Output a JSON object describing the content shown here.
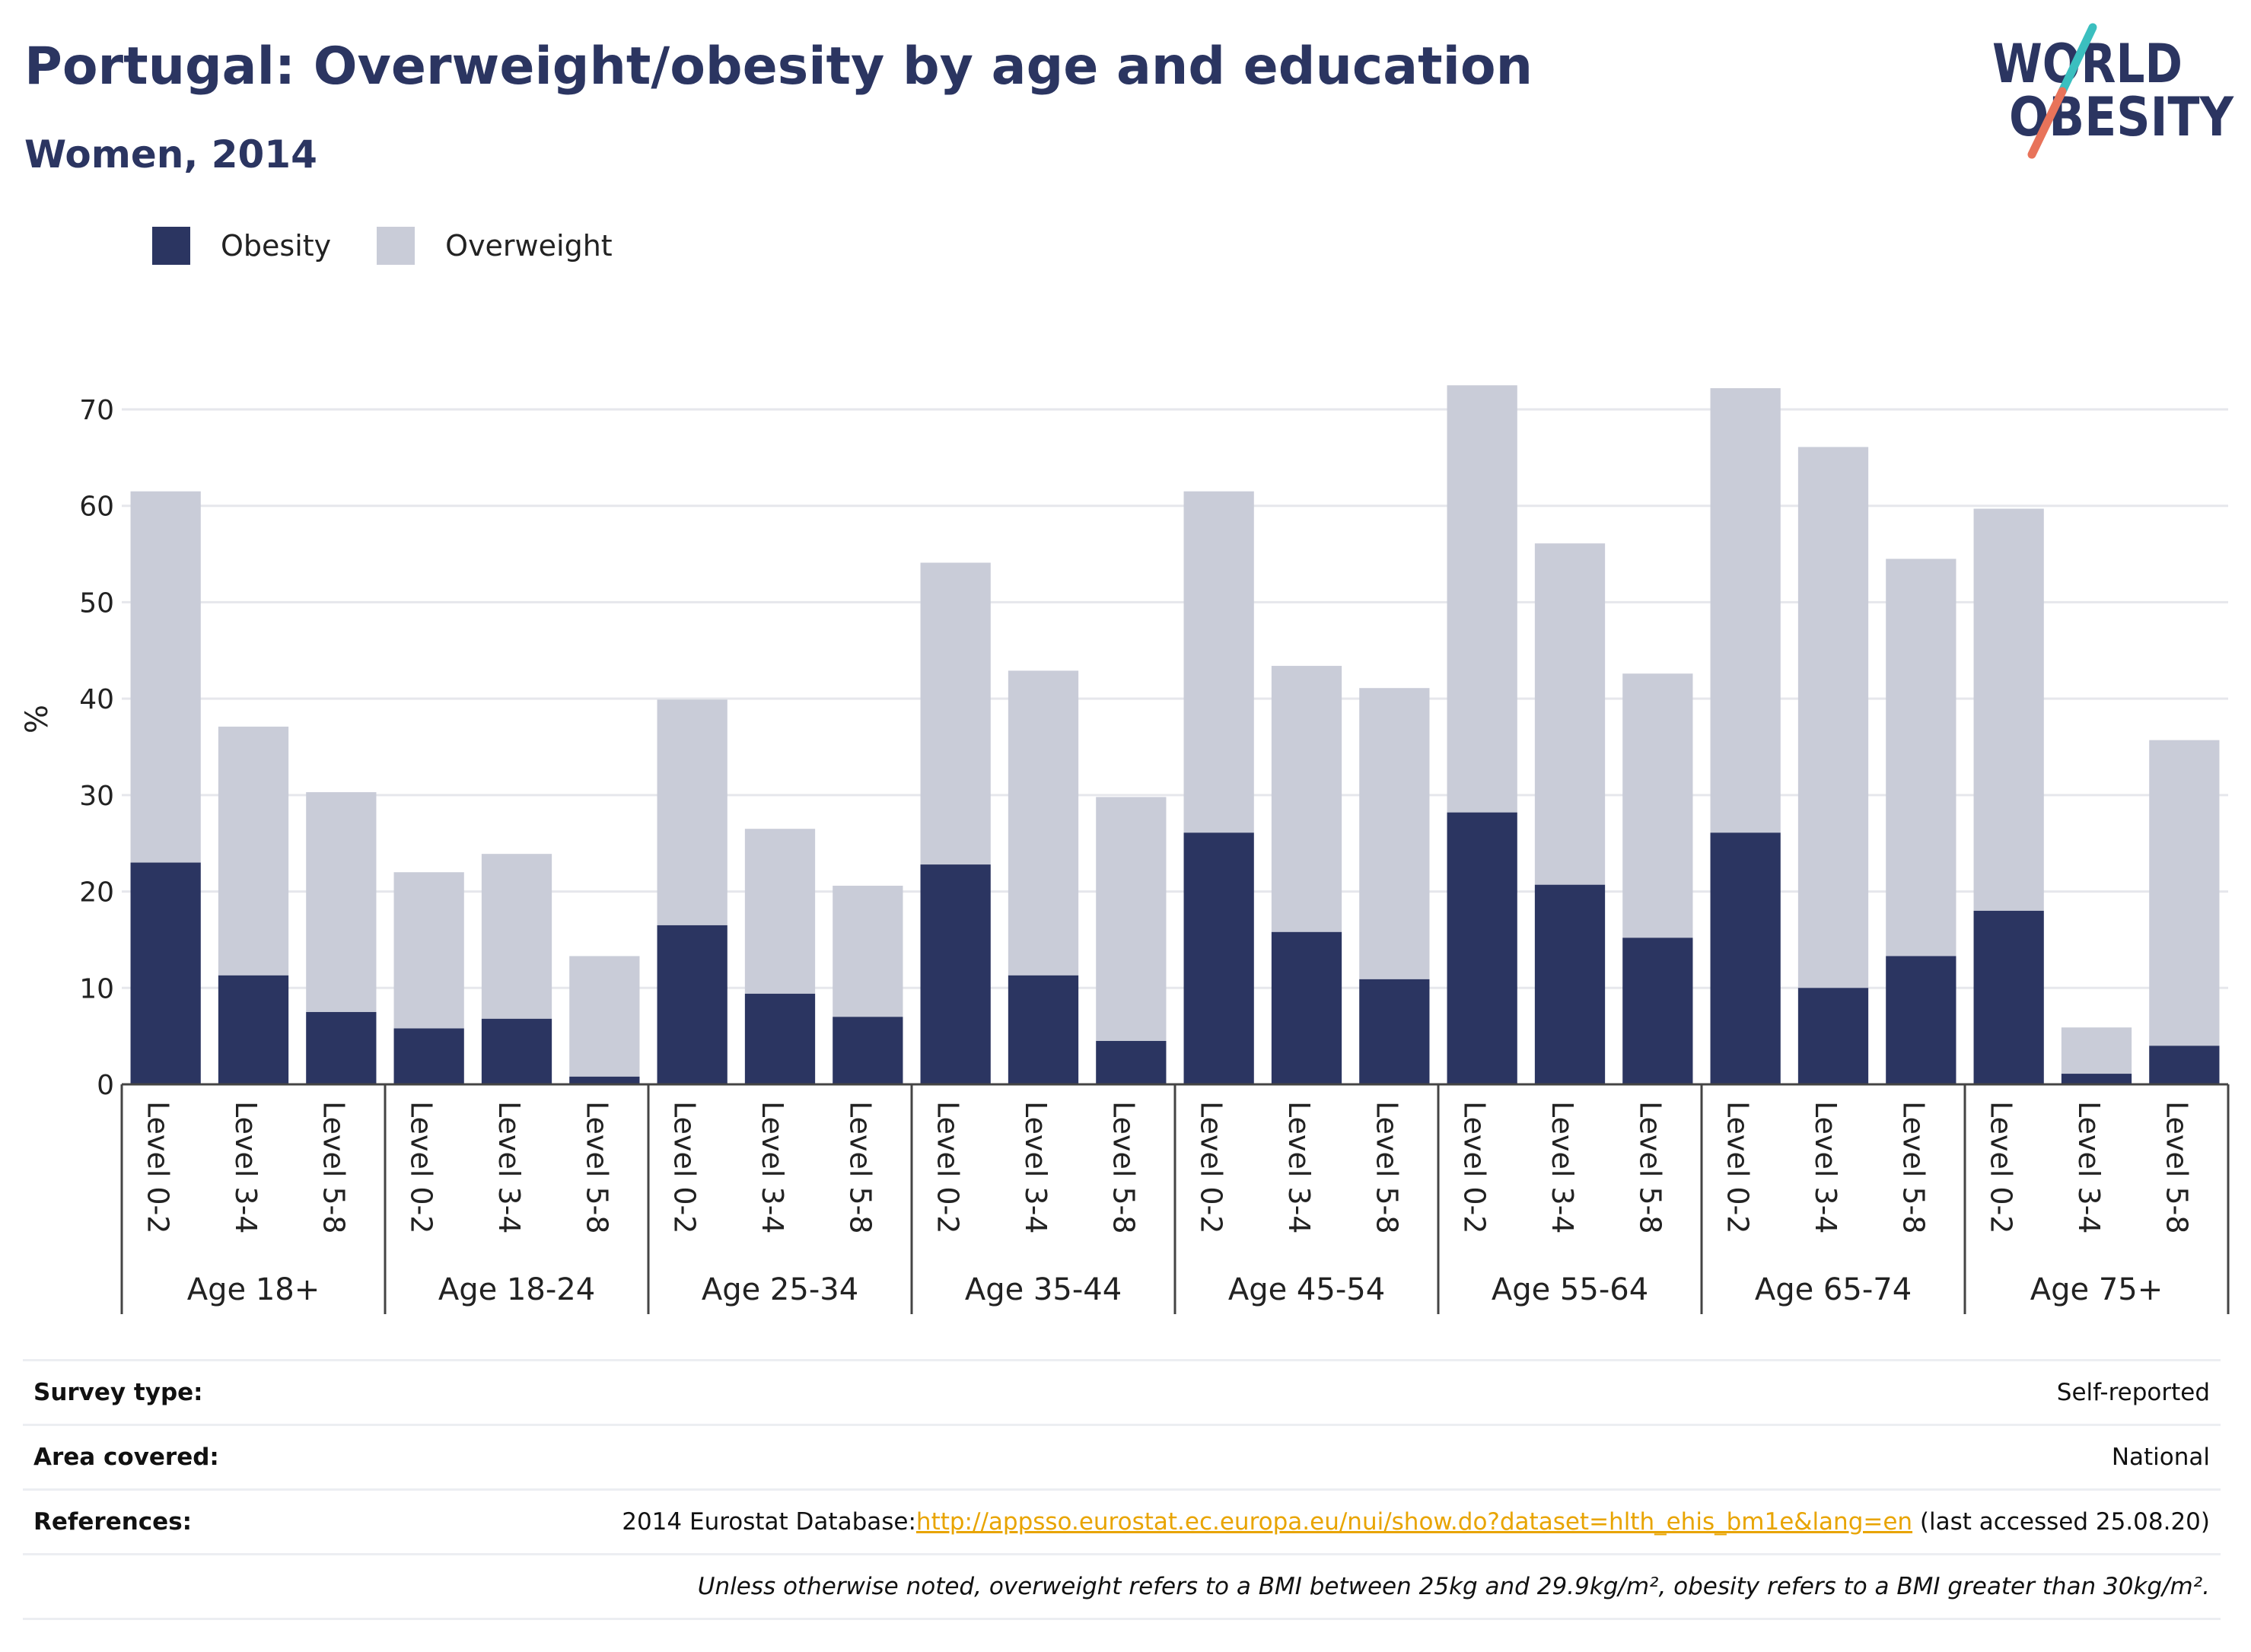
{
  "header": {
    "title": "Portugal: Overweight/obesity by age and education",
    "subtitle": "Women, 2014"
  },
  "logo": {
    "line1": "WORLD",
    "line2": "OBESITY",
    "icon": "world-obesity-logo"
  },
  "colors": {
    "obesity": "#2b3561",
    "overweight": "#c9ccd8",
    "accent_teal": "#3bbfbf",
    "accent_coral": "#e8735a",
    "link": "#e8a400"
  },
  "info": {
    "survey_label": "Survey type:",
    "survey_value": "Self-reported",
    "area_label": "Area covered:",
    "area_value": "National",
    "references_label": "References:",
    "references_prefix": "2014 Eurostat Database:",
    "references_link": "http://appsso.eurostat.ec.europa.eu/nui/show.do?dataset=hlth_ehis_bm1e&lang=en",
    "references_suffix": " (last accessed 25.08.20)",
    "note": "Unless otherwise noted, overweight refers to a BMI between 25kg and 29.9kg/m², obesity refers to a BMI greater than 30kg/m²."
  },
  "chart_data": {
    "type": "bar",
    "stacked": true,
    "ylabel": "%",
    "ylim": [
      0,
      75
    ],
    "yticks": [
      0,
      10,
      20,
      30,
      40,
      50,
      60,
      70
    ],
    "grid": true,
    "legend_position": "top-left",
    "groups": [
      {
        "label": "Age 18+",
        "bars": [
          {
            "category": "Level 0-2",
            "obesity": 23.0,
            "overweight": 38.5
          },
          {
            "category": "Level 3-4",
            "obesity": 11.3,
            "overweight": 25.8
          },
          {
            "category": "Level 5-8",
            "obesity": 7.5,
            "overweight": 22.8
          }
        ]
      },
      {
        "label": "Age 18-24",
        "bars": [
          {
            "category": "Level 0-2",
            "obesity": 5.8,
            "overweight": 16.2
          },
          {
            "category": "Level 3-4",
            "obesity": 6.8,
            "overweight": 17.1
          },
          {
            "category": "Level 5-8",
            "obesity": 0.8,
            "overweight": 12.5
          }
        ]
      },
      {
        "label": "Age 25-34",
        "bars": [
          {
            "category": "Level 0-2",
            "obesity": 16.5,
            "overweight": 23.4
          },
          {
            "category": "Level 3-4",
            "obesity": 9.4,
            "overweight": 17.1
          },
          {
            "category": "Level 5-8",
            "obesity": 7.0,
            "overweight": 13.6
          }
        ]
      },
      {
        "label": "Age 35-44",
        "bars": [
          {
            "category": "Level 0-2",
            "obesity": 22.8,
            "overweight": 31.3
          },
          {
            "category": "Level 3-4",
            "obesity": 11.3,
            "overweight": 31.6
          },
          {
            "category": "Level 5-8",
            "obesity": 4.5,
            "overweight": 25.3
          }
        ]
      },
      {
        "label": "Age 45-54",
        "bars": [
          {
            "category": "Level 0-2",
            "obesity": 26.1,
            "overweight": 35.4
          },
          {
            "category": "Level 3-4",
            "obesity": 15.8,
            "overweight": 27.6
          },
          {
            "category": "Level 5-8",
            "obesity": 10.9,
            "overweight": 30.2
          }
        ]
      },
      {
        "label": "Age 55-64",
        "bars": [
          {
            "category": "Level 0-2",
            "obesity": 28.2,
            "overweight": 44.3
          },
          {
            "category": "Level 3-4",
            "obesity": 20.7,
            "overweight": 35.4
          },
          {
            "category": "Level 5-8",
            "obesity": 15.2,
            "overweight": 27.4
          }
        ]
      },
      {
        "label": "Age 65-74",
        "bars": [
          {
            "category": "Level 0-2",
            "obesity": 26.1,
            "overweight": 46.1
          },
          {
            "category": "Level 3-4",
            "obesity": 10.0,
            "overweight": 56.1
          },
          {
            "category": "Level 5-8",
            "obesity": 13.3,
            "overweight": 41.2
          }
        ]
      },
      {
        "label": "Age 75+",
        "bars": [
          {
            "category": "Level 0-2",
            "obesity": 18.0,
            "overweight": 41.7
          },
          {
            "category": "Level 3-4",
            "obesity": 1.1,
            "overweight": 4.8
          },
          {
            "category": "Level 5-8",
            "obesity": 4.0,
            "overweight": 31.7
          }
        ]
      }
    ],
    "series": [
      {
        "name": "Obesity",
        "key": "obesity"
      },
      {
        "name": "Overweight",
        "key": "overweight"
      }
    ]
  }
}
